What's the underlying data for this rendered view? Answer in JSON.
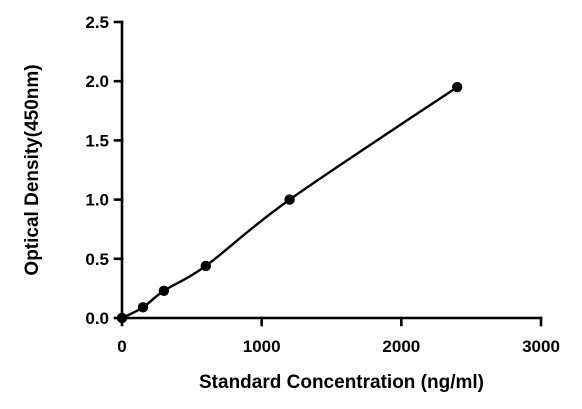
{
  "chart_data": {
    "type": "scatter",
    "title": "",
    "xlabel": "Standard Concentration (ng/ml)",
    "ylabel": "Optical Density(450nm)",
    "xlim": [
      0,
      3000
    ],
    "ylim": [
      0,
      2.5
    ],
    "x_ticks": [
      "0",
      "1000",
      "2000",
      "3000"
    ],
    "y_ticks": [
      "0.0",
      "0.5",
      "1.0",
      "1.5",
      "2.0",
      "2.5"
    ],
    "grid": false,
    "legend": "none",
    "has_fit_curve": true,
    "series": [
      {
        "x": [
          0,
          150,
          300,
          600,
          1200,
          2400
        ],
        "y": [
          0.0,
          0.09,
          0.23,
          0.44,
          1.0,
          1.95
        ]
      }
    ],
    "colors": {
      "points": "#000000",
      "curve": "#000000",
      "axes": "#000000"
    }
  }
}
